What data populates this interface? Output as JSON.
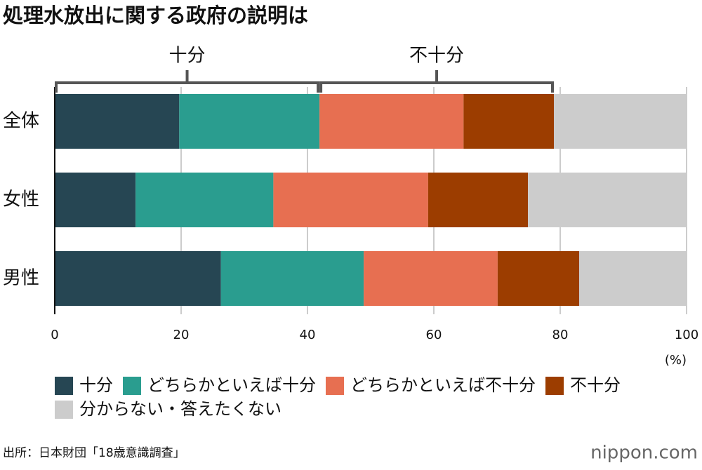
{
  "chart_data": {
    "type": "stacked_barh",
    "title": "処理水放出に関する政府の説明は",
    "categories": [
      "全体",
      "女性",
      "男性"
    ],
    "series": [
      {
        "name": "十分",
        "color": "#264653",
        "values": [
          19.7,
          12.8,
          26.3
        ]
      },
      {
        "name": "どちらかといえば十分",
        "color": "#2a9d8f",
        "values": [
          22.2,
          21.8,
          22.6
        ]
      },
      {
        "name": "どちらかといえば不十分",
        "color": "#e76f51",
        "values": [
          22.8,
          24.5,
          21.2
        ]
      },
      {
        "name": "不十分",
        "color": "#9c3d00",
        "values": [
          14.3,
          15.8,
          12.9
        ]
      },
      {
        "name": "分からない・答えたくない",
        "color": "#cccccc",
        "values": [
          21.0,
          25.1,
          17.0
        ]
      }
    ],
    "xlim": [
      0,
      100
    ],
    "xticks": [
      0,
      20,
      40,
      60,
      80,
      100
    ],
    "grid": true,
    "unit_label": "(%)",
    "brackets": [
      "十分",
      "不十分"
    ],
    "source": "出所：日本財団「18歳意識調査」",
    "logo": "nippon.com"
  }
}
